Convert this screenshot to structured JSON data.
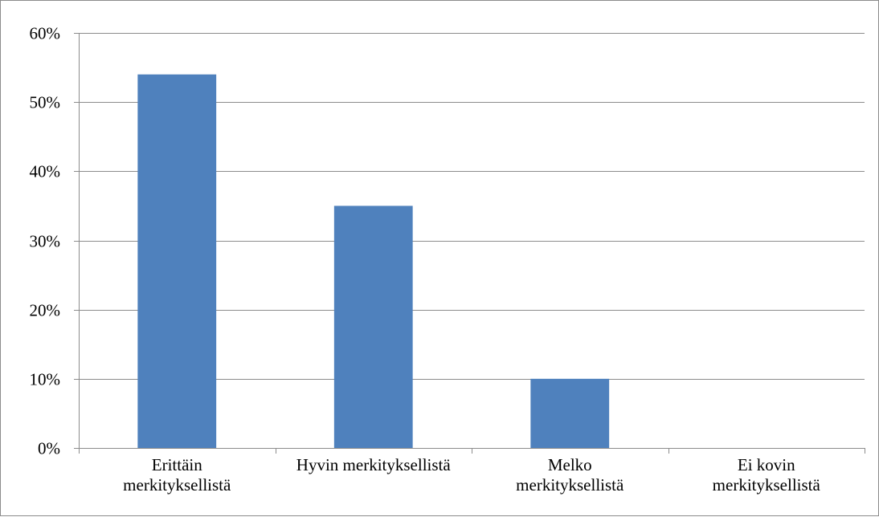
{
  "chart_data": {
    "type": "bar",
    "categories": [
      [
        "Erittäin",
        "merkityksellistä"
      ],
      [
        "Hyvin merkityksellistä"
      ],
      [
        "Melko",
        "merkityksellistä"
      ],
      [
        "Ei kovin",
        "merkityksellistä"
      ]
    ],
    "values": [
      54,
      35,
      10,
      0
    ],
    "ylim": [
      0,
      60
    ],
    "yticks": [
      0,
      10,
      20,
      30,
      40,
      50,
      60
    ],
    "ytick_labels": [
      "0%",
      "10%",
      "20%",
      "30%",
      "40%",
      "50%",
      "60%"
    ],
    "grid": true,
    "legend": "none",
    "title": "",
    "xlabel": "",
    "ylabel": ""
  },
  "colors": {
    "bar": "#4f81bd",
    "grid": "#8c8c8c",
    "axis": "#8c8c8c",
    "frame": "#8c8c8c"
  }
}
